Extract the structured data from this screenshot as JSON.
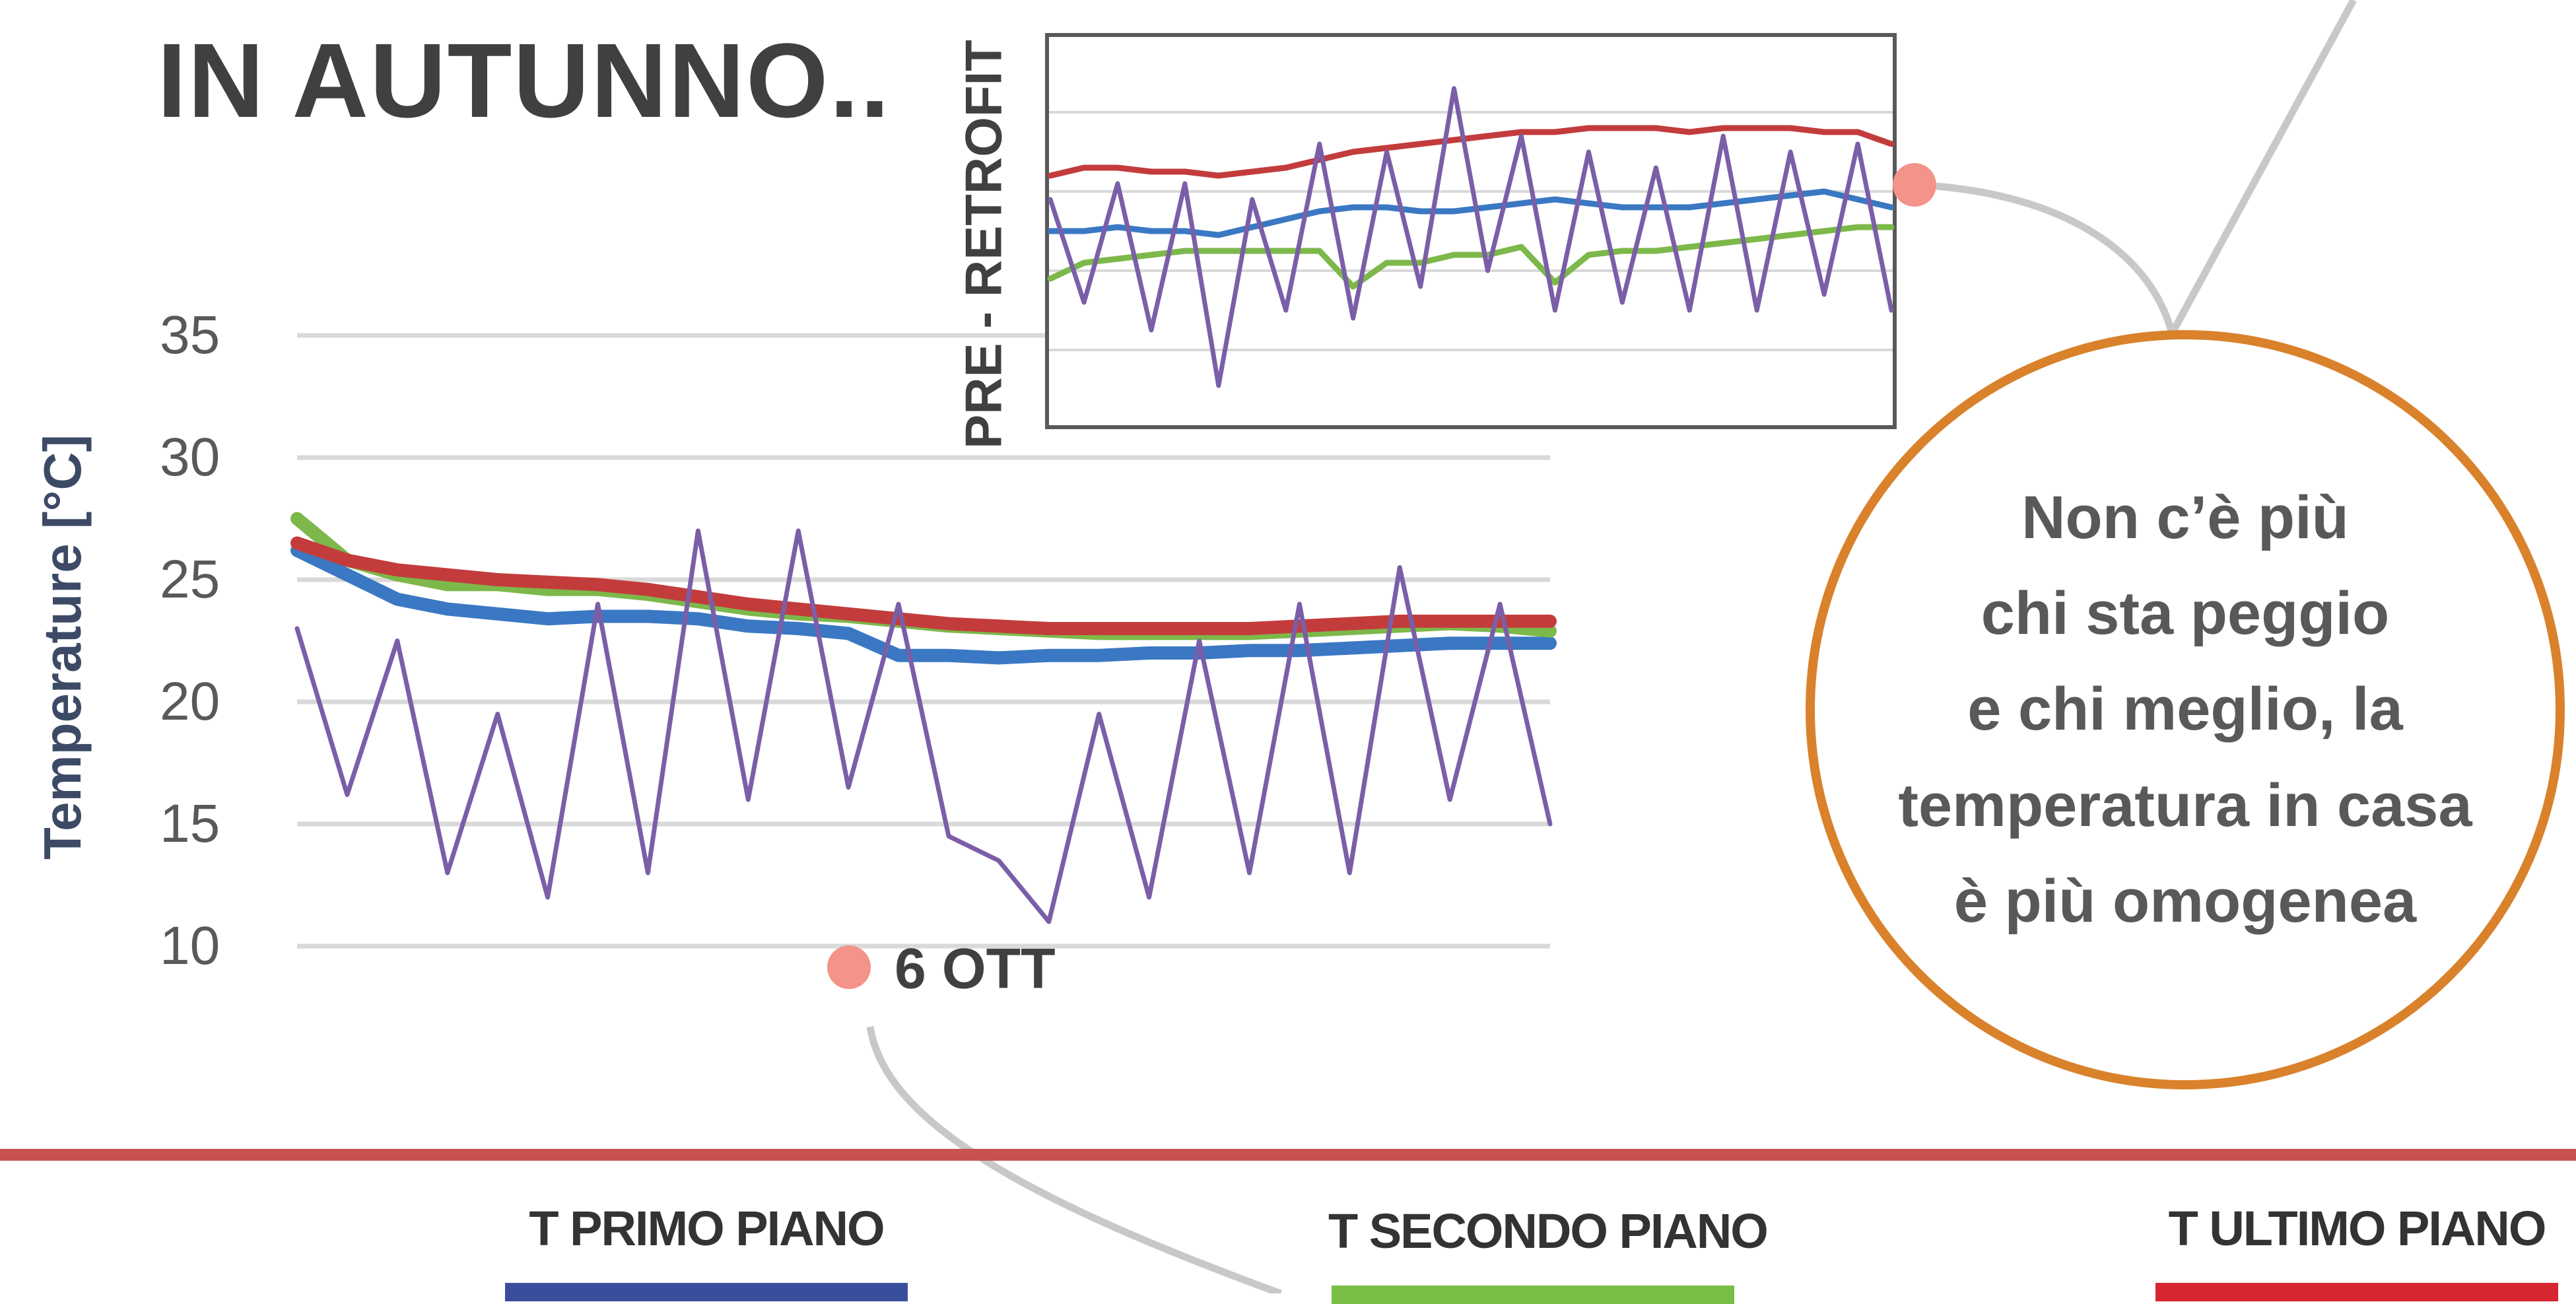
{
  "headline": "IN AUTUNNO..",
  "callout_text": [
    "Non c’è più",
    "chi sta peggio",
    "e chi meglio, la",
    "temperatura in casa",
    "è più omogenea"
  ],
  "colors": {
    "primo": "#3a78c3",
    "secondo": "#7cb84a",
    "ultimo": "#c33c3c",
    "esterna": "#7b5ea8",
    "accent_ring": "#d9822b",
    "marker": "#f4938a",
    "divider": "#c9514f"
  },
  "legend": [
    {
      "label": "T PRIMO PIANO",
      "color": "#3a4f9c"
    },
    {
      "label": "T SECONDO PIANO",
      "color": "#78bd45"
    },
    {
      "label": "T ULTIMO PIANO",
      "color": "#d62630"
    }
  ],
  "chart_data": [
    {
      "type": "line",
      "ylabel": "Temperature [°C]",
      "ylim": [
        10,
        35
      ],
      "yticks": [
        10,
        15,
        20,
        25,
        30,
        35
      ],
      "grid": true,
      "annotation": {
        "label": "6 OTT",
        "x": 45
      },
      "x": [
        0,
        4,
        8,
        12,
        16,
        20,
        24,
        28,
        32,
        36,
        40,
        44,
        48,
        52,
        56,
        60,
        64,
        68,
        72,
        76,
        80,
        84,
        88,
        92,
        96,
        100
      ],
      "series": [
        {
          "color_key": "primo",
          "values": [
            26.2,
            25.2,
            24.2,
            23.8,
            23.6,
            23.4,
            23.5,
            23.5,
            23.4,
            23.1,
            23.0,
            22.8,
            21.9,
            21.9,
            21.8,
            21.9,
            21.9,
            22.0,
            22.0,
            22.1,
            22.1,
            22.2,
            22.3,
            22.4,
            22.4,
            22.4
          ]
        },
        {
          "color_key": "secondo",
          "values": [
            27.5,
            25.8,
            25.2,
            24.8,
            24.8,
            24.6,
            24.6,
            24.4,
            24.1,
            23.8,
            23.6,
            23.5,
            23.3,
            23.1,
            23.0,
            22.9,
            22.8,
            22.8,
            22.8,
            22.8,
            22.9,
            23.0,
            23.1,
            23.2,
            23.1,
            22.9
          ]
        },
        {
          "color_key": "ultimo",
          "values": [
            26.5,
            25.8,
            25.4,
            25.2,
            25.0,
            24.9,
            24.8,
            24.6,
            24.3,
            24.0,
            23.8,
            23.6,
            23.4,
            23.2,
            23.1,
            23.0,
            23.0,
            23.0,
            23.0,
            23.0,
            23.1,
            23.2,
            23.3,
            23.3,
            23.3,
            23.3
          ]
        },
        {
          "color_key": "esterna",
          "values": [
            23.0,
            16.2,
            22.5,
            13.0,
            19.5,
            12.0,
            24.0,
            13.0,
            27.0,
            16.0,
            27.0,
            16.5,
            24.0,
            14.5,
            13.5,
            11.0,
            19.5,
            12.0,
            22.5,
            13.0,
            24.0,
            13.0,
            25.5,
            16.0,
            24.0,
            15.0
          ]
        }
      ]
    },
    {
      "type": "line",
      "ylabel": "PRE - RETROFIT",
      "grid": true,
      "x": [
        0,
        4,
        8,
        12,
        16,
        20,
        24,
        28,
        32,
        36,
        40,
        44,
        48,
        52,
        56,
        60,
        64,
        68,
        72,
        76,
        80,
        84,
        88,
        92,
        96,
        100
      ],
      "series": [
        {
          "color_key": "ultimo",
          "values": [
            0.64,
            0.66,
            0.66,
            0.65,
            0.65,
            0.64,
            0.65,
            0.66,
            0.68,
            0.7,
            0.71,
            0.72,
            0.73,
            0.74,
            0.75,
            0.75,
            0.76,
            0.76,
            0.76,
            0.75,
            0.76,
            0.76,
            0.76,
            0.75,
            0.75,
            0.72
          ]
        },
        {
          "color_key": "primo",
          "values": [
            0.5,
            0.5,
            0.51,
            0.5,
            0.5,
            0.49,
            0.51,
            0.53,
            0.55,
            0.56,
            0.56,
            0.55,
            0.55,
            0.56,
            0.57,
            0.58,
            0.57,
            0.56,
            0.56,
            0.56,
            0.57,
            0.58,
            0.59,
            0.6,
            0.58,
            0.56
          ]
        },
        {
          "color_key": "secondo",
          "values": [
            0.38,
            0.42,
            0.43,
            0.44,
            0.45,
            0.45,
            0.45,
            0.45,
            0.45,
            0.36,
            0.42,
            0.42,
            0.44,
            0.44,
            0.46,
            0.37,
            0.44,
            0.45,
            0.45,
            0.46,
            0.47,
            0.48,
            0.49,
            0.5,
            0.51,
            0.51
          ]
        },
        {
          "color_key": "esterna",
          "values": [
            0.58,
            0.32,
            0.62,
            0.25,
            0.62,
            0.11,
            0.58,
            0.3,
            0.72,
            0.28,
            0.7,
            0.36,
            0.86,
            0.4,
            0.74,
            0.3,
            0.7,
            0.32,
            0.66,
            0.3,
            0.74,
            0.3,
            0.7,
            0.34,
            0.72,
            0.3
          ]
        }
      ]
    }
  ]
}
